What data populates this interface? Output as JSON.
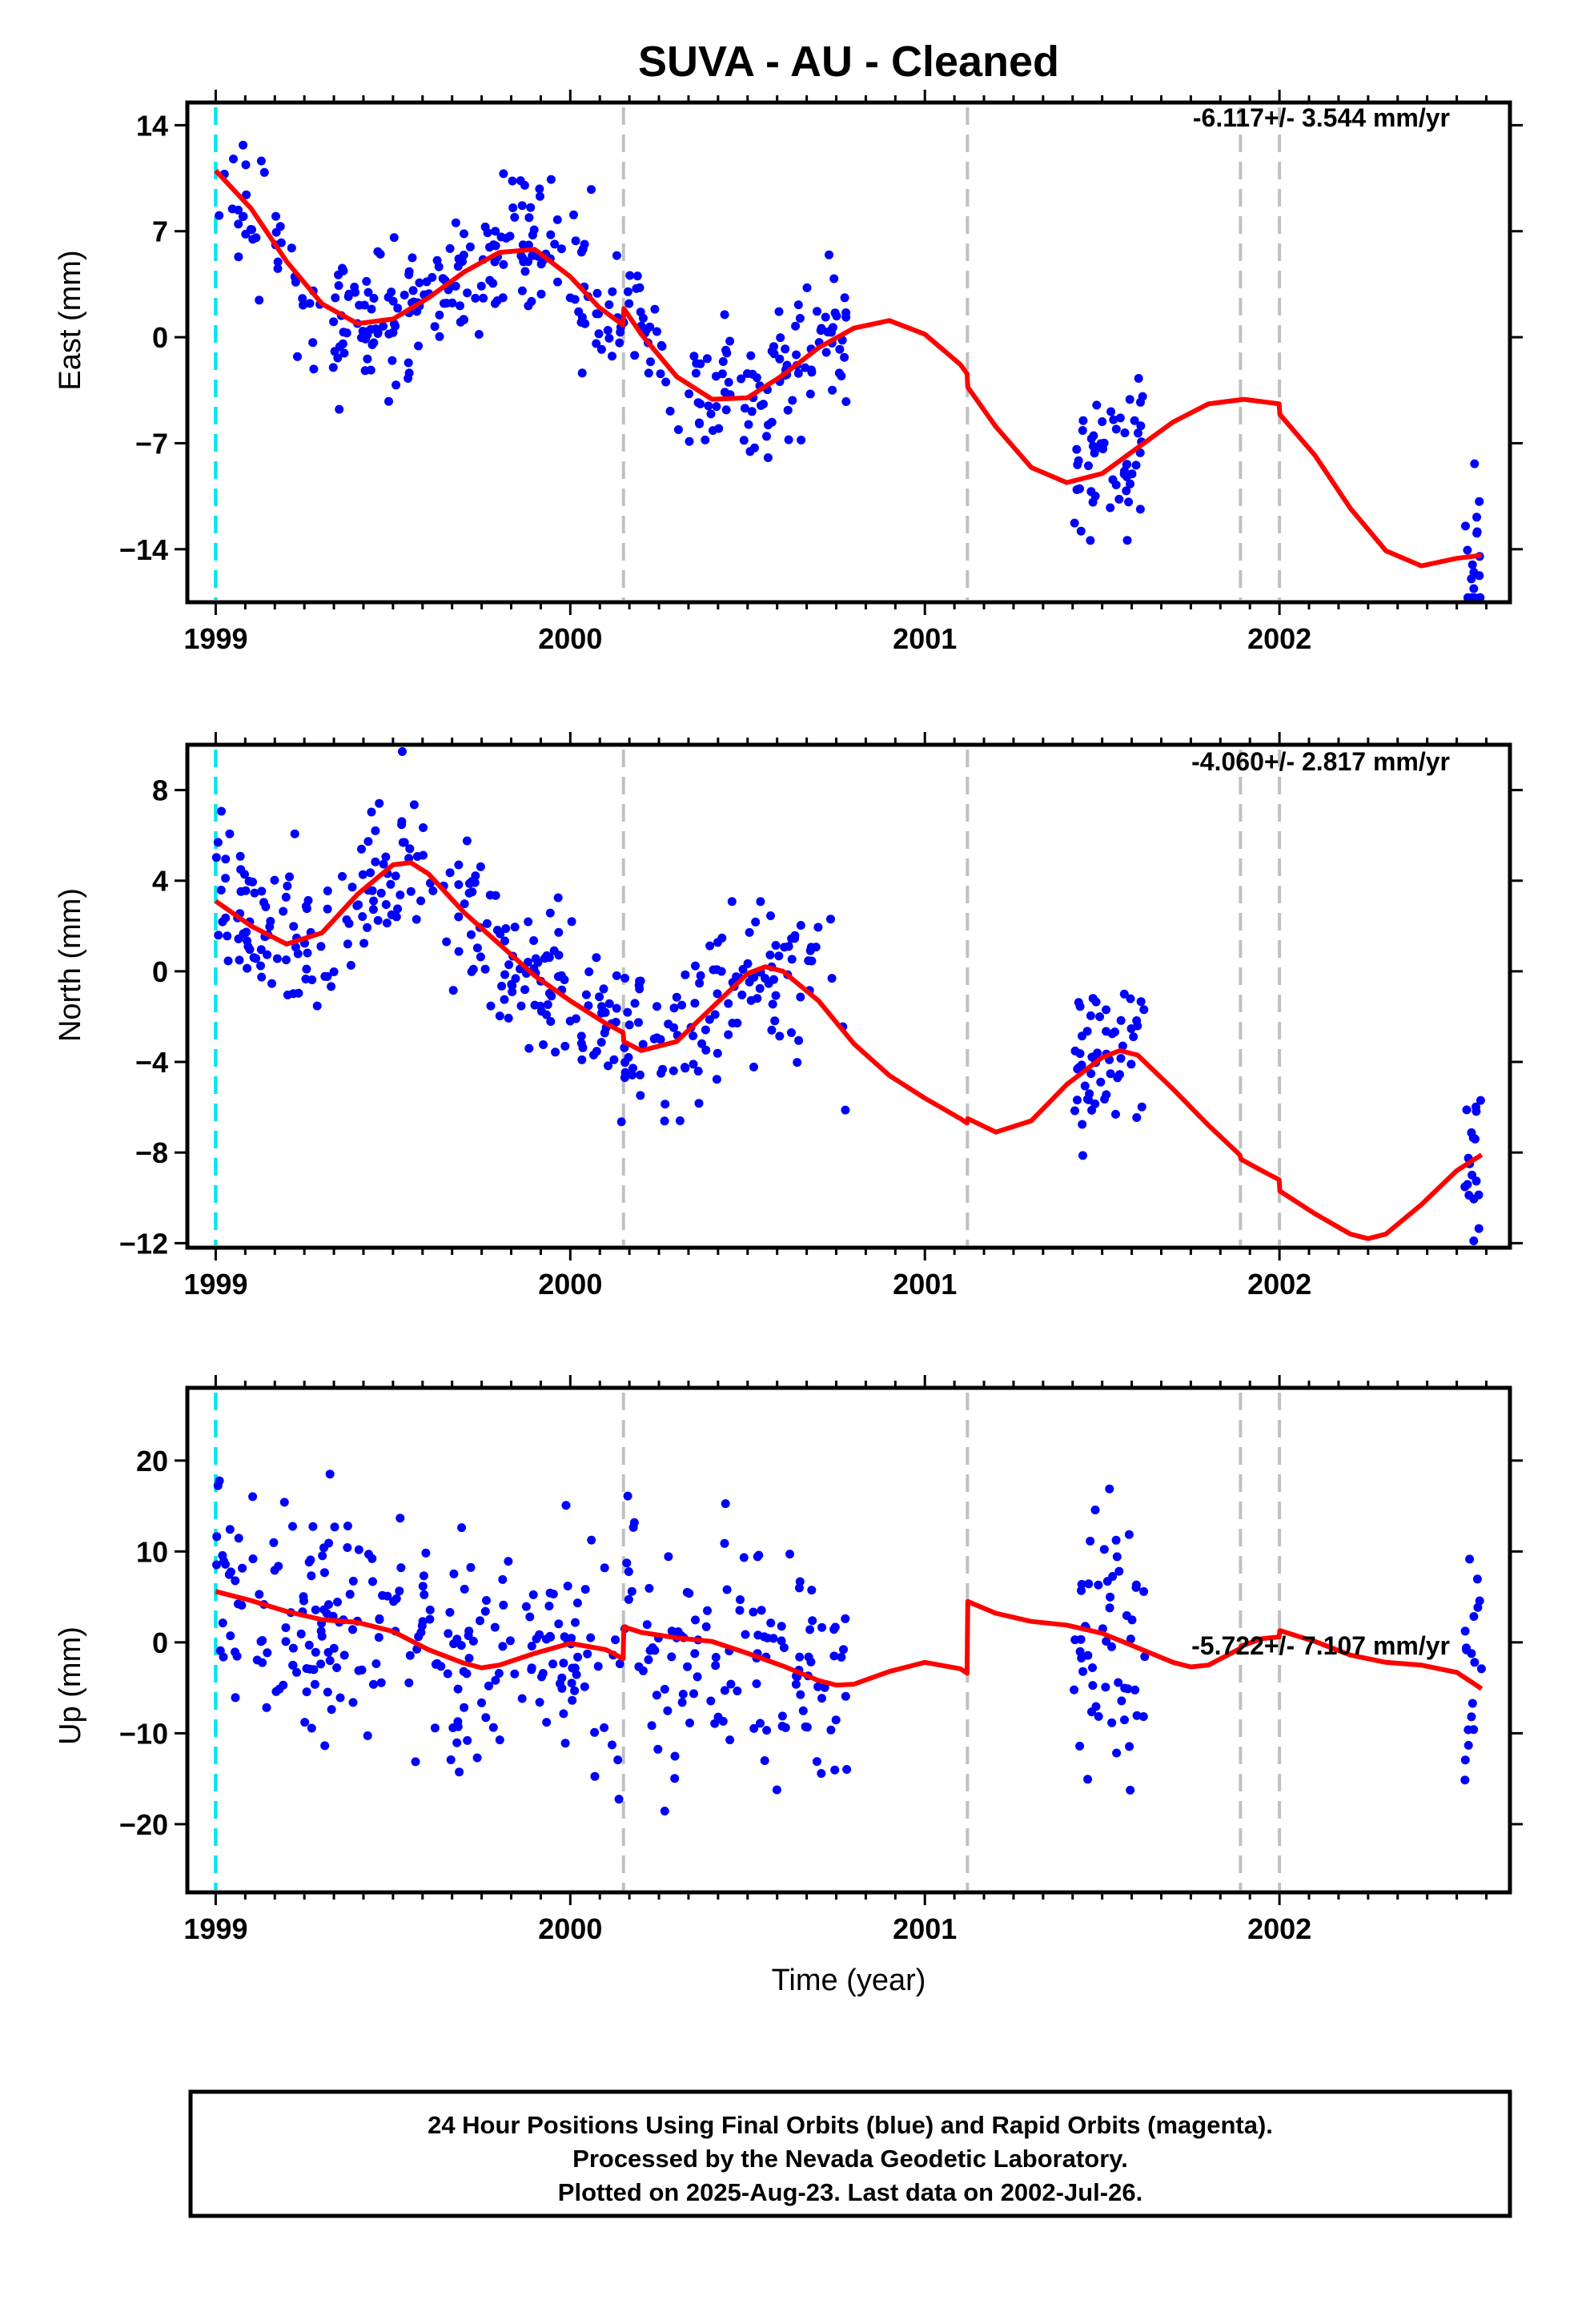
{
  "title": "SUVA  - AU - Cleaned",
  "xlabel": "Time (year)",
  "footer": {
    "line1": "24 Hour Positions Using Final Orbits (blue) and Rapid Orbits (magenta).",
    "line2": "Processed by the Nevada Geodetic Laboratory.",
    "line3": "Plotted on 2025-Aug-23. Last data on 2002-Jul-26."
  },
  "colors": {
    "points": "#0000ff",
    "model": "#ff0000",
    "start_line": "#00e5ee",
    "event_line": "#c0c0c0"
  },
  "chart_data": [
    {
      "type": "scatter",
      "ylabel": "East (mm)",
      "rate": "-6.117+/- 3.544 mm/yr",
      "xlim": [
        1998.92,
        2002.65
      ],
      "ylim": [
        -17.5,
        15.5
      ],
      "xticks": [
        "1999",
        "2000",
        "2001",
        "2002"
      ],
      "yticks": [
        14,
        7,
        0,
        -7,
        -14
      ],
      "grid": false,
      "start_line": 1999.0,
      "event_lines": [
        2000.15,
        2001.12,
        2001.89,
        2002.0
      ],
      "seed": 11,
      "segments": [
        {
          "x0": 1999.0,
          "x1": 2000.78,
          "n": 360
        },
        {
          "x0": 2001.42,
          "x1": 2001.62,
          "n": 55
        },
        {
          "x0": 2002.52,
          "x1": 2002.57,
          "n": 18
        }
      ],
      "noise": 2.4,
      "model": {
        "x": [
          1999.0,
          1999.1,
          1999.2,
          1999.3,
          1999.4,
          1999.5,
          1999.6,
          1999.7,
          1999.8,
          1999.9,
          2000.0,
          2000.08,
          2000.149,
          2000.151,
          2000.2,
          2000.3,
          2000.4,
          2000.5,
          2000.6,
          2000.7,
          2000.8,
          2000.9,
          2001.0,
          2001.1,
          2001.119,
          2001.121,
          2001.2,
          2001.3,
          2001.4,
          2001.5,
          2001.6,
          2001.7,
          2001.8,
          2001.9,
          2001.999,
          2002.001,
          2002.1,
          2002.2,
          2002.3,
          2002.4,
          2002.5,
          2002.57
        ],
        "y": [
          11,
          8.5,
          5,
          2.2,
          0.9,
          1.2,
          2.6,
          4.3,
          5.6,
          5.8,
          4,
          2.0,
          0.8,
          1.9,
          0.2,
          -2.6,
          -4.1,
          -4,
          -2.5,
          -0.7,
          0.6,
          1.1,
          0.2,
          -1.8,
          -2.4,
          -3.3,
          -5.9,
          -8.6,
          -9.6,
          -9,
          -7.3,
          -5.6,
          -4.4,
          -4.1,
          -4.4,
          -5.1,
          -7.8,
          -11.3,
          -14.1,
          -15.1,
          -14.6,
          -14.4
        ]
      }
    },
    {
      "type": "scatter",
      "ylabel": "North (mm)",
      "rate": "-4.060+/- 2.817 mm/yr",
      "xlim": [
        1998.92,
        2002.65
      ],
      "ylim": [
        -12.2,
        10
      ],
      "xticks": [
        "1999",
        "2000",
        "2001",
        "2002"
      ],
      "yticks": [
        8,
        4,
        0,
        -4,
        -8,
        -12
      ],
      "grid": false,
      "start_line": 1999.0,
      "event_lines": [
        2000.15,
        2001.12,
        2001.89,
        2002.0
      ],
      "seed": 23,
      "segments": [
        {
          "x0": 1999.0,
          "x1": 2000.78,
          "n": 360
        },
        {
          "x0": 2001.42,
          "x1": 2001.62,
          "n": 55
        },
        {
          "x0": 2002.52,
          "x1": 2002.57,
          "n": 18
        }
      ],
      "noise": 1.7,
      "model": {
        "x": [
          1999.0,
          1999.1,
          1999.2,
          1999.3,
          1999.4,
          1999.5,
          1999.55,
          1999.6,
          1999.7,
          1999.8,
          1999.9,
          2000.0,
          2000.1,
          2000.149,
          2000.151,
          2000.2,
          2000.3,
          2000.4,
          2000.5,
          2000.55,
          2000.6,
          2000.7,
          2000.8,
          2000.9,
          2001.0,
          2001.1,
          2001.119,
          2001.121,
          2001.2,
          2001.3,
          2001.4,
          2001.5,
          2001.55,
          2001.6,
          2001.7,
          2001.8,
          2001.888,
          2001.892,
          2001.95,
          2001.999,
          2002.001,
          2002.1,
          2002.2,
          2002.25,
          2002.3,
          2002.4,
          2002.5,
          2002.57
        ],
        "y": [
          3.1,
          2,
          1.2,
          1.7,
          3.4,
          4.7,
          4.8,
          4.3,
          2.6,
          1.2,
          -0.2,
          -1.3,
          -2.3,
          -2.7,
          -3.1,
          -3.5,
          -3.1,
          -1.6,
          -0.1,
          0.2,
          0,
          -1.3,
          -3.2,
          -4.6,
          -5.6,
          -6.5,
          -6.7,
          -6.5,
          -7.1,
          -6.6,
          -5,
          -3.8,
          -3.5,
          -3.7,
          -5.2,
          -6.8,
          -8.1,
          -8.3,
          -8.8,
          -9.2,
          -9.7,
          -10.7,
          -11.6,
          -11.8,
          -11.6,
          -10.3,
          -8.8,
          -8.1
        ]
      }
    },
    {
      "type": "scatter",
      "ylabel": "Up (mm)",
      "rate": "-5.722+/- 7.107 mm/yr",
      "xlim": [
        1998.92,
        2002.65
      ],
      "ylim": [
        -27.5,
        28
      ],
      "xticks": [
        "1999",
        "2000",
        "2001",
        "2002"
      ],
      "yticks": [
        20,
        10,
        0,
        -10,
        -20
      ],
      "grid": false,
      "start_line": 1999.0,
      "event_lines": [
        2000.15,
        2001.12,
        2001.89,
        2002.0
      ],
      "seed": 47,
      "segments": [
        {
          "x0": 1999.0,
          "x1": 2000.78,
          "n": 360
        },
        {
          "x0": 2001.42,
          "x1": 2001.62,
          "n": 55
        },
        {
          "x0": 2002.52,
          "x1": 2002.57,
          "n": 18
        }
      ],
      "noise": 6.8,
      "model": {
        "x": [
          1999.0,
          1999.1,
          1999.2,
          1999.3,
          1999.4,
          1999.5,
          1999.6,
          1999.7,
          1999.75,
          1999.8,
          1999.9,
          2000.0,
          2000.1,
          2000.149,
          2000.151,
          2000.2,
          2000.3,
          2000.4,
          2000.5,
          2000.6,
          2000.7,
          2000.75,
          2000.8,
          2000.9,
          2001.0,
          2001.1,
          2001.119,
          2001.121,
          2001.2,
          2001.3,
          2001.4,
          2001.5,
          2001.6,
          2001.7,
          2001.75,
          2001.8,
          2001.888,
          2001.892,
          2001.95,
          2001.999,
          2002.001,
          2002.1,
          2002.2,
          2002.3,
          2002.4,
          2002.5,
          2002.57
        ],
        "y": [
          5.6,
          4.6,
          3.4,
          2.5,
          2.2,
          1.2,
          -0.8,
          -2.3,
          -2.8,
          -2.5,
          -1.2,
          -0.1,
          -0.8,
          -1.8,
          1.7,
          1.1,
          0.5,
          0.1,
          -1.2,
          -2.6,
          -4.2,
          -4.7,
          -4.6,
          -3.2,
          -2.2,
          -2.9,
          -3.4,
          4.5,
          3.2,
          2.3,
          1.9,
          1,
          -0.6,
          -2.2,
          -2.7,
          -2.5,
          -0.7,
          -0.4,
          0.4,
          0.6,
          1.3,
          0.1,
          -1.4,
          -2.2,
          -2.5,
          -3.3,
          -5.1
        ]
      }
    }
  ]
}
